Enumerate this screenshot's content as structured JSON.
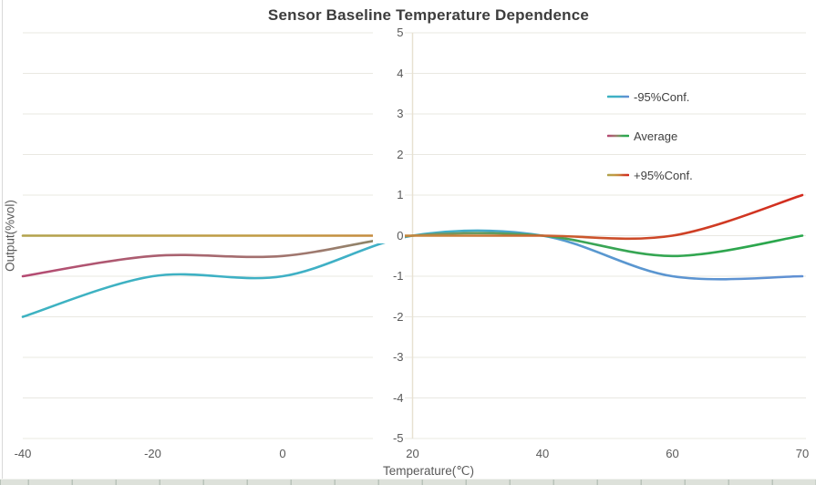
{
  "title": "Sensor Baseline Temperature Dependence",
  "axes": {
    "x_title": "Temperature(℃)",
    "y_title": "Output(%vol)",
    "x_tick_labels": [
      "-40",
      "-20",
      "0",
      "20",
      "40",
      "60",
      "70"
    ],
    "y_tick_labels": [
      "5",
      "4",
      "3",
      "2",
      "1",
      "0",
      "-1",
      "-2",
      "-3",
      "-4",
      "-5"
    ]
  },
  "legend": {
    "items": [
      "-95%Conf.",
      "Average",
      "+95%Conf."
    ]
  },
  "chart_data": {
    "type": "line",
    "smoothed": true,
    "x_axis_type": "category",
    "x": [
      -40,
      -20,
      0,
      20,
      40,
      60,
      70
    ],
    "series": [
      {
        "name": "-95%Conf.",
        "values": [
          -2,
          -1,
          -1,
          0,
          0,
          -1,
          -1
        ],
        "gradient": [
          {
            "offset": 0,
            "color": "#3db2c1"
          },
          {
            "offset": 0.55,
            "color": "#40afc7"
          },
          {
            "offset": 0.72,
            "color": "#5898cf"
          },
          {
            "offset": 1,
            "color": "#6090d3"
          }
        ]
      },
      {
        "name": "Average",
        "values": [
          -1,
          -0.5,
          -0.5,
          0,
          0,
          -0.5,
          0
        ],
        "gradient": [
          {
            "offset": 0,
            "color": "#b54a72"
          },
          {
            "offset": 0.38,
            "color": "#9e7a6e"
          },
          {
            "offset": 0.55,
            "color": "#75975f"
          },
          {
            "offset": 0.72,
            "color": "#3ba556"
          },
          {
            "offset": 1,
            "color": "#28a74b"
          }
        ]
      },
      {
        "name": "+95%Conf.",
        "values": [
          0,
          0,
          0,
          0,
          0,
          0,
          1
        ],
        "gradient": [
          {
            "offset": 0,
            "color": "#b2a24c"
          },
          {
            "offset": 0.3,
            "color": "#c09b43"
          },
          {
            "offset": 0.55,
            "color": "#c8823c"
          },
          {
            "offset": 0.75,
            "color": "#cb4f2a"
          },
          {
            "offset": 1,
            "color": "#d32b1e"
          }
        ]
      }
    ],
    "title": "Sensor Baseline Temperature Dependence",
    "xlabel": "Temperature(℃)",
    "ylabel": "Output(%vol)",
    "ylim": [
      -5,
      5
    ],
    "ytick_step": 1,
    "grid": true,
    "vertical_axis_at_category": "20",
    "legend_position": "inside-upper-right"
  },
  "colors": {
    "background": "#ffffff",
    "gridline": "#e9e8e2",
    "vertical_axis_line": "#e8e1d1",
    "title_text": "#3d3d3d",
    "tick_text": "#595959",
    "axis_title_text": "#595959",
    "legend_text": "#404040",
    "left_border": "#d9d9d9",
    "bottom_strip": "#dde1da",
    "bottom_strip_tick": "#b9c3ba"
  }
}
